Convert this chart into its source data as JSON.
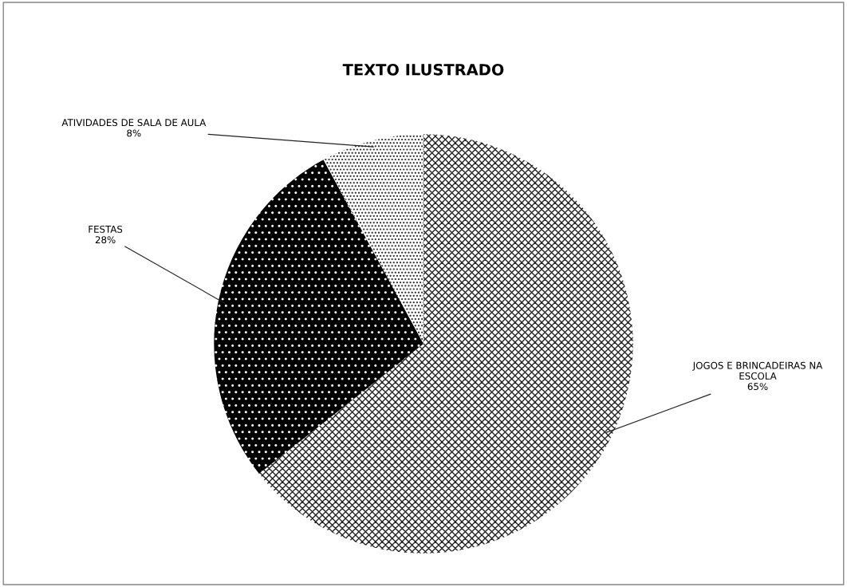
{
  "chart_data": {
    "type": "pie",
    "title": "TEXTO ILUSTRADO",
    "categories": [
      "JOGOS E BRINCADEIRAS NA\nESCOLA",
      "FESTAS",
      "ATIVIDADES DE SALA DE AULA"
    ],
    "values": [
      65,
      28,
      8
    ],
    "value_labels": [
      "65%",
      "28%",
      "8%"
    ],
    "colors": [
      "#ffffff",
      "#000000",
      "#ffffff"
    ],
    "legend": false
  }
}
